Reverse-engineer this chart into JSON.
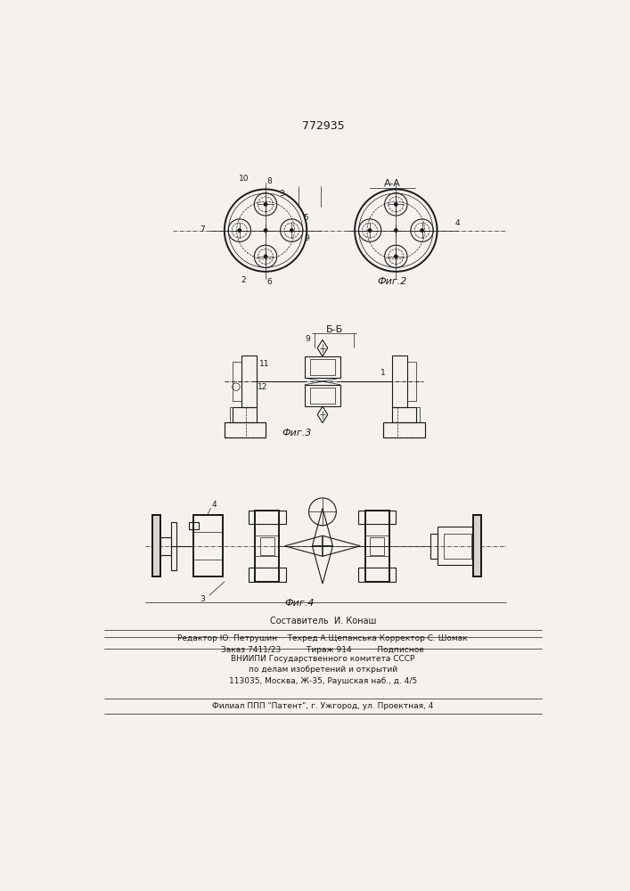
{
  "title_number": "772935",
  "background_color": "#f5f2ee",
  "line_color": "#1a1a1a",
  "fig2_label": "Фиг.2",
  "fig3_label": "Фиг.3",
  "fig4_label": "Фиг.4",
  "section_aa": "A-A",
  "section_bb": "Б-Б",
  "footer_lines": [
    "Составитель  И. Конаш",
    "Редактор Ю. Петрушин    Техред А.Щепанська Корректор С. Шомак",
    "Заказ 7411/23          Тираж 914          Подписное",
    "ВНИИПИ Государственного комитета СССР",
    "по делам изобретений и открытий",
    "113035, Москва, Ж-35, Раушская наб., д. 4/5",
    "Филиал ППП \"Патент\", г. Ужгород, ул. Проектная, 4"
  ]
}
